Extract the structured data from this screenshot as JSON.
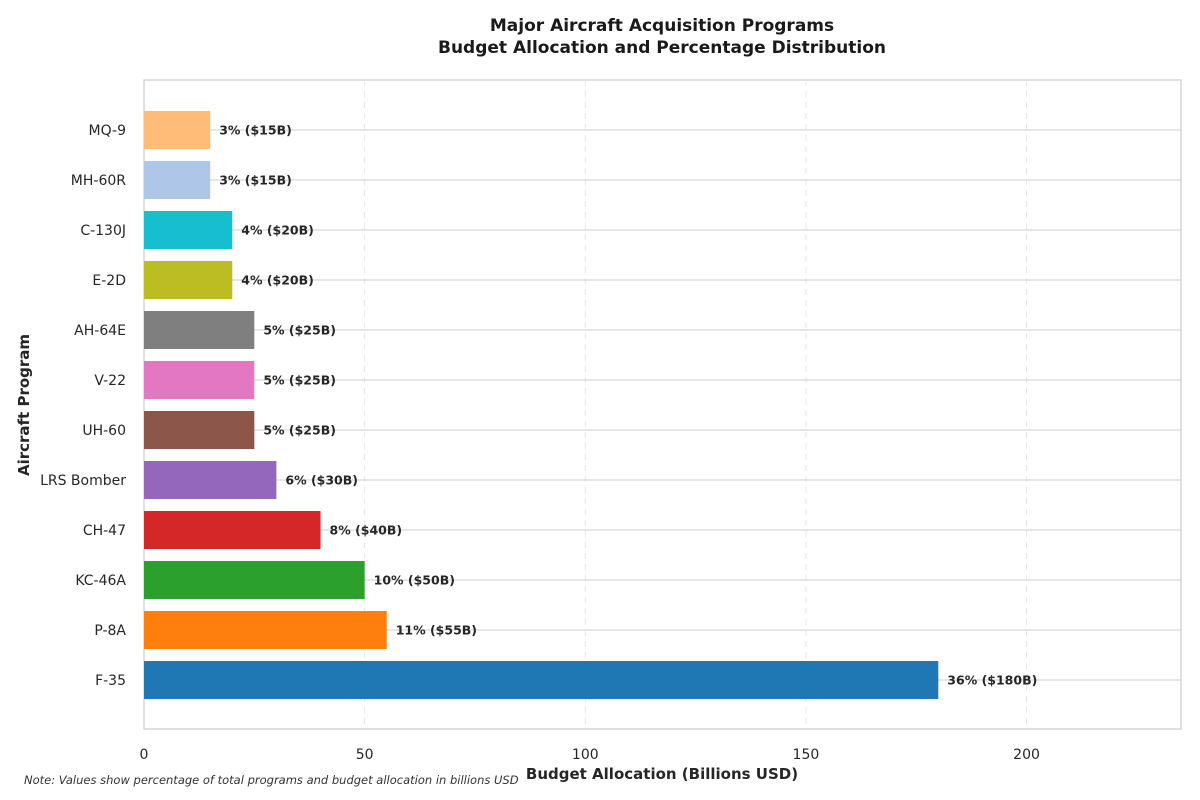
{
  "chart_data": {
    "type": "bar",
    "orientation": "horizontal",
    "title": [
      "Major Aircraft Acquisition Programs",
      "Budget Allocation and Percentage Distribution"
    ],
    "xlabel": "Budget Allocation (Billions USD)",
    "ylabel": "Aircraft Program",
    "xlim": [
      0,
      235
    ],
    "xticks": [
      0,
      50,
      100,
      150,
      200
    ],
    "grid": true,
    "note": "Note: Values show percentage of total programs and budget allocation in billions USD",
    "categories": [
      "MQ-9",
      "MH-60R",
      "C-130J",
      "E-2D",
      "AH-64E",
      "V-22",
      "UH-60",
      "LRS Bomber",
      "CH-47",
      "KC-46A",
      "P-8A",
      "F-35"
    ],
    "values": [
      15,
      15,
      20,
      20,
      25,
      25,
      25,
      30,
      40,
      50,
      55,
      180
    ],
    "data_labels": [
      "3% ($15B)",
      "3% ($15B)",
      "4% ($20B)",
      "4% ($20B)",
      "5% ($25B)",
      "5% ($25B)",
      "5% ($25B)",
      "6% ($30B)",
      "8% ($40B)",
      "10% ($50B)",
      "11% ($55B)",
      "36% ($180B)"
    ],
    "colors": [
      "#ffbb78",
      "#aec7e8",
      "#17becf",
      "#bcbd22",
      "#7f7f7f",
      "#e377c2",
      "#8c564b",
      "#9467bd",
      "#d62728",
      "#2ca02c",
      "#ff7f0e",
      "#1f77b4"
    ]
  }
}
